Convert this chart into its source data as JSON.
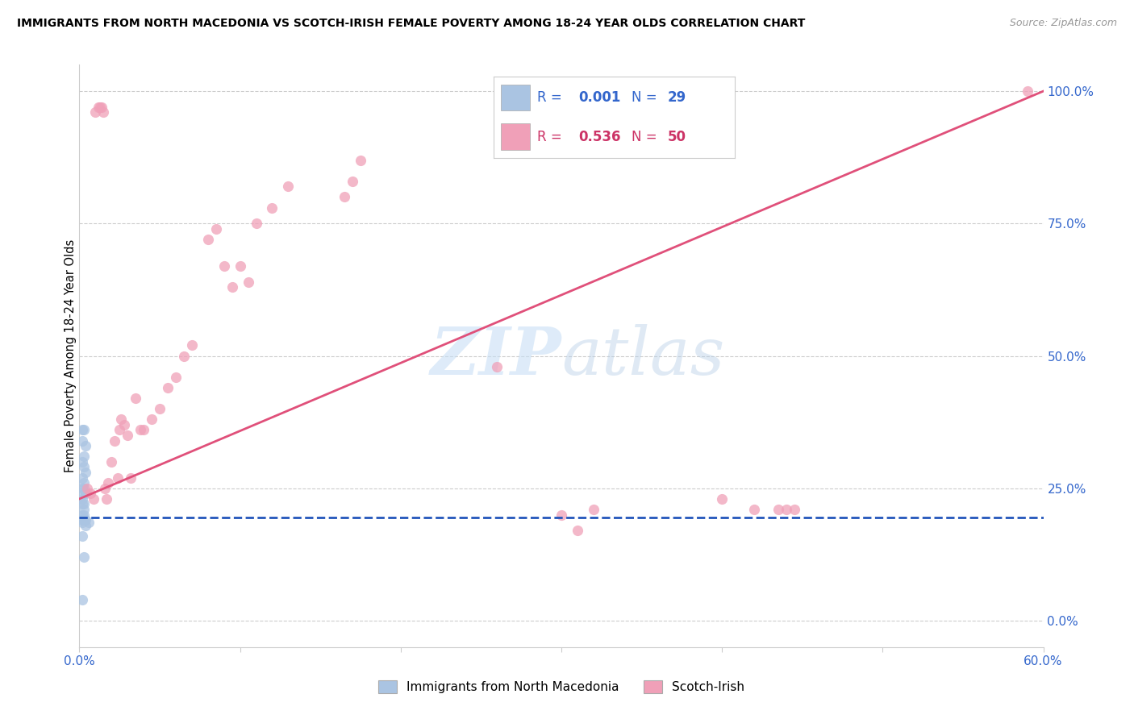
{
  "title": "IMMIGRANTS FROM NORTH MACEDONIA VS SCOTCH-IRISH FEMALE POVERTY AMONG 18-24 YEAR OLDS CORRELATION CHART",
  "source": "Source: ZipAtlas.com",
  "ylabel": "Female Poverty Among 18-24 Year Olds",
  "legend_blue_label": "Immigrants from North Macedonia",
  "legend_pink_label": "Scotch-Irish",
  "blue_color": "#aac4e2",
  "blue_line_color": "#2255bb",
  "pink_color": "#f0a0b8",
  "pink_line_color": "#e0507a",
  "watermark_zip": "ZIP",
  "watermark_atlas": "atlas",
  "xlim": [
    0.0,
    0.6
  ],
  "ylim": [
    -0.05,
    1.05
  ],
  "xticks": [
    0.0,
    0.1,
    0.2,
    0.3,
    0.4,
    0.5,
    0.6
  ],
  "xticklabels": [
    "0.0%",
    "",
    "",
    "",
    "",
    "",
    "60.0%"
  ],
  "yticks_right": [
    0.0,
    0.25,
    0.5,
    0.75,
    1.0
  ],
  "yticklabels_right": [
    "0.0%",
    "25.0%",
    "50.0%",
    "75.0%",
    "100.0%"
  ],
  "blue_x": [
    0.002,
    0.003,
    0.002,
    0.004,
    0.003,
    0.002,
    0.003,
    0.004,
    0.002,
    0.003,
    0.002,
    0.003,
    0.004,
    0.003,
    0.002,
    0.003,
    0.002,
    0.003,
    0.002,
    0.003,
    0.004,
    0.002,
    0.003,
    0.002,
    0.006,
    0.004,
    0.002,
    0.003,
    0.002
  ],
  "blue_y": [
    0.36,
    0.36,
    0.34,
    0.33,
    0.31,
    0.3,
    0.29,
    0.28,
    0.27,
    0.26,
    0.25,
    0.25,
    0.24,
    0.24,
    0.23,
    0.22,
    0.22,
    0.21,
    0.2,
    0.2,
    0.19,
    0.19,
    0.19,
    0.185,
    0.185,
    0.18,
    0.16,
    0.12,
    0.04
  ],
  "pink_x": [
    0.005,
    0.007,
    0.009,
    0.01,
    0.012,
    0.013,
    0.014,
    0.015,
    0.016,
    0.017,
    0.018,
    0.02,
    0.022,
    0.024,
    0.025,
    0.026,
    0.028,
    0.03,
    0.032,
    0.035,
    0.038,
    0.04,
    0.045,
    0.05,
    0.055,
    0.06,
    0.065,
    0.07,
    0.08,
    0.085,
    0.09,
    0.095,
    0.1,
    0.105,
    0.11,
    0.12,
    0.13,
    0.165,
    0.17,
    0.175,
    0.26,
    0.3,
    0.31,
    0.32,
    0.4,
    0.42,
    0.435,
    0.44,
    0.445,
    0.59
  ],
  "pink_y": [
    0.25,
    0.24,
    0.23,
    0.96,
    0.97,
    0.97,
    0.97,
    0.96,
    0.25,
    0.23,
    0.26,
    0.3,
    0.34,
    0.27,
    0.36,
    0.38,
    0.37,
    0.35,
    0.27,
    0.42,
    0.36,
    0.36,
    0.38,
    0.4,
    0.44,
    0.46,
    0.5,
    0.52,
    0.72,
    0.74,
    0.67,
    0.63,
    0.67,
    0.64,
    0.75,
    0.78,
    0.82,
    0.8,
    0.83,
    0.87,
    0.48,
    0.2,
    0.17,
    0.21,
    0.23,
    0.21,
    0.21,
    0.21,
    0.21,
    1.0
  ],
  "pink_line_x0": 0.0,
  "pink_line_y0": 0.23,
  "pink_line_x1": 0.6,
  "pink_line_y1": 1.0,
  "blue_line_x0": 0.0,
  "blue_line_y0": 0.195,
  "blue_line_x1": 0.6,
  "blue_line_y1": 0.195
}
